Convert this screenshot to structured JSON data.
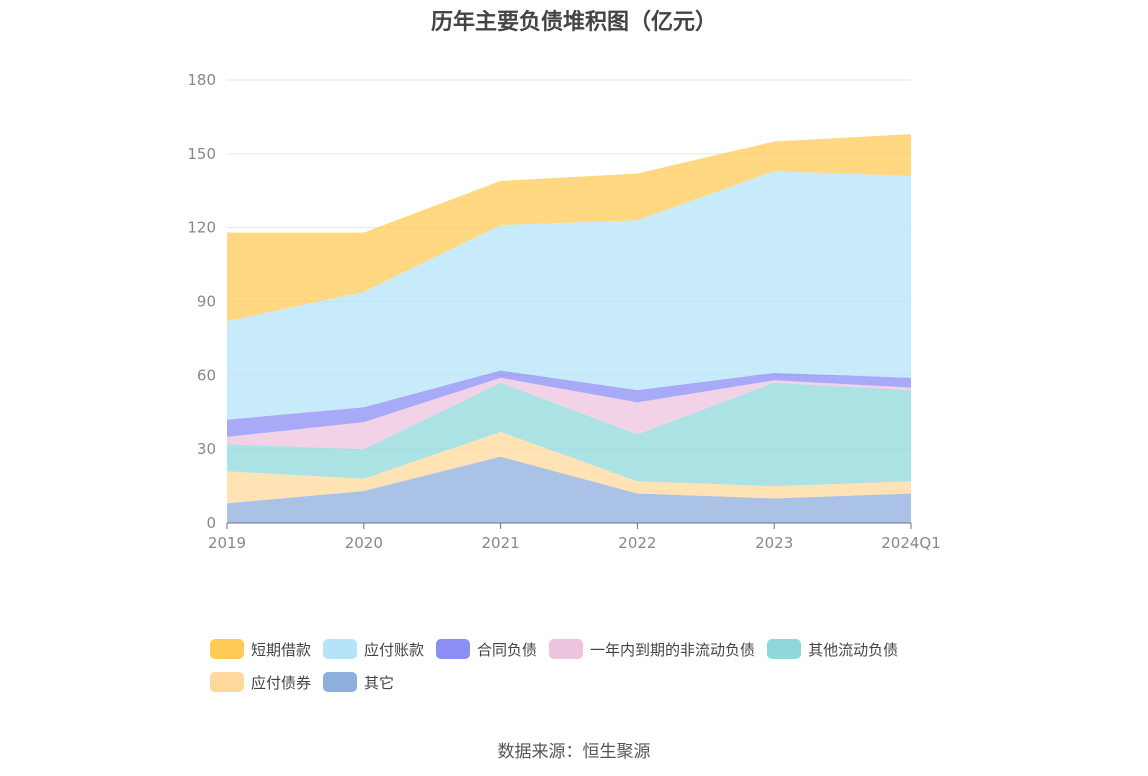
{
  "chart_data": {
    "type": "area",
    "stacked": true,
    "title": "历年主要负债堆积图（亿元）",
    "categories": [
      "2019",
      "2020",
      "2021",
      "2022",
      "2023",
      "2024Q1"
    ],
    "ylim": [
      0,
      180
    ],
    "yticks": [
      0,
      30,
      60,
      90,
      120,
      150,
      180
    ],
    "grid": true,
    "legend_position": "bottom",
    "series": [
      {
        "name": "其它",
        "color": "#8eaede",
        "values": [
          8,
          13,
          27,
          12,
          10,
          12
        ]
      },
      {
        "name": "应付债券",
        "color": "#ffd99b",
        "values": [
          13,
          5,
          10,
          5,
          5,
          5
        ]
      },
      {
        "name": "其他流动负债",
        "color": "#8fd8da",
        "values": [
          11,
          12,
          20,
          19,
          42,
          37
        ]
      },
      {
        "name": "一年内到期的非流动负债",
        "color": "#edc3df",
        "values": [
          3,
          11,
          2,
          13,
          1,
          1
        ]
      },
      {
        "name": "合同负债",
        "color": "#8b8ef5",
        "values": [
          7,
          6,
          3,
          5,
          3,
          4
        ]
      },
      {
        "name": "应付账款",
        "color": "#b5e4fa",
        "values": [
          40,
          47,
          59,
          69,
          82,
          82
        ]
      },
      {
        "name": "短期借款",
        "color": "#ffcb57",
        "values": [
          36,
          24,
          18,
          19,
          12,
          17
        ]
      }
    ]
  },
  "source": "数据来源：恒生聚源"
}
